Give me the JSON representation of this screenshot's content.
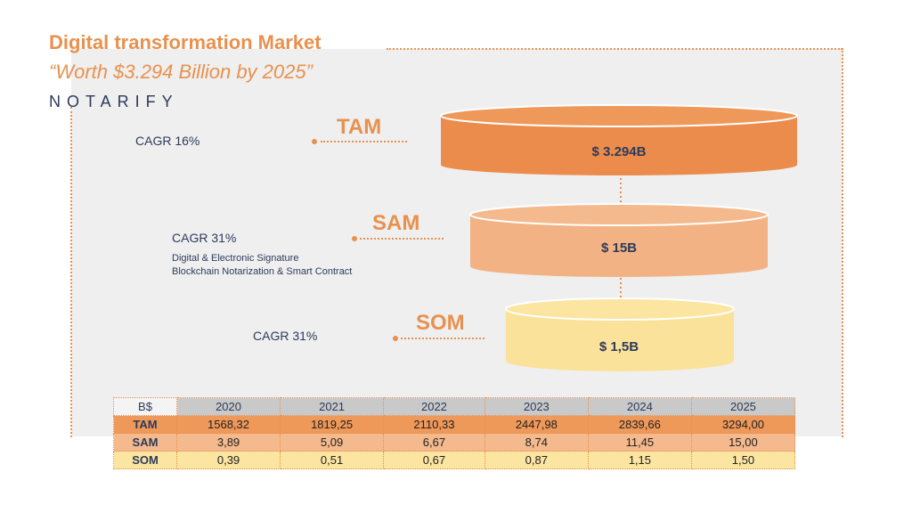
{
  "title": "Digital transformation Market",
  "subtitle": "“Worth $3.294 Billion by 2025”",
  "logo": "NOTARIFY",
  "colors": {
    "accent": "#e8914e",
    "tam": "#ee9859",
    "sam": "#f4b98d",
    "som": "#fbe5a0",
    "text": "#2c3a5a"
  },
  "tiers": [
    {
      "name": "TAM",
      "cagr": "CAGR 16%",
      "value_label": "$ 3.294B"
    },
    {
      "name": "SAM",
      "cagr": "CAGR 31%",
      "value_label": "$ 15B",
      "note": [
        "Digital & Electronic Signature",
        "Blockchain Notarization  & Smart Contract"
      ]
    },
    {
      "name": "SOM",
      "cagr": "CAGR 31%",
      "value_label": "$ 1,5B"
    }
  ],
  "chart_data": {
    "type": "table",
    "unit_label": "B$",
    "categories": [
      "2020",
      "2021",
      "2022",
      "2023",
      "2024",
      "2025"
    ],
    "series": [
      {
        "name": "TAM",
        "values": [
          "1568,32",
          "1819,25",
          "2110,33",
          "2447,98",
          "2839,66",
          "3294,00"
        ]
      },
      {
        "name": "SAM",
        "values": [
          "3,89",
          "5,09",
          "6,67",
          "8,74",
          "11,45",
          "15,00"
        ]
      },
      {
        "name": "SOM",
        "values": [
          "0,39",
          "0,51",
          "0,67",
          "0,87",
          "1,15",
          "1,50"
        ]
      }
    ]
  }
}
